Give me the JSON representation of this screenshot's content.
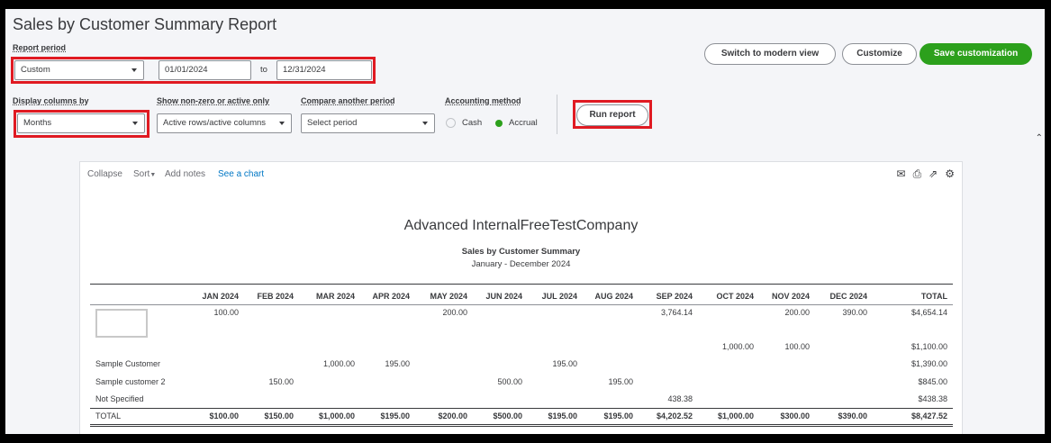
{
  "header": {
    "title": "Sales by Customer Summary Report"
  },
  "controls": {
    "report_period_label": "Report period",
    "report_period_value": "Custom",
    "date_from": "01/01/2024",
    "date_to_label": "to",
    "date_to": "12/31/2024",
    "display_columns_label": "Display columns by",
    "display_columns_value": "Months",
    "show_nonzero_label": "Show non-zero or active only",
    "show_nonzero_value": "Active rows/active columns",
    "compare_label": "Compare another period",
    "compare_value": "Select period",
    "accounting_label": "Accounting method",
    "cash_label": "Cash",
    "accrual_label": "Accrual",
    "accounting_selected": "Accrual",
    "run_report_label": "Run report"
  },
  "buttons": {
    "switch_view": "Switch to modern view",
    "customize": "Customize",
    "save_customization": "Save customization"
  },
  "toolbar": {
    "collapse": "Collapse",
    "sort": "Sort",
    "add_notes": "Add notes",
    "see_chart": "See a chart"
  },
  "report": {
    "company": "Advanced InternalFreeTestCompany",
    "title": "Sales by Customer Summary",
    "date_range": "January - December 2024",
    "columns": [
      "JAN 2024",
      "FEB 2024",
      "MAR 2024",
      "APR 2024",
      "MAY 2024",
      "JUN 2024",
      "JUL 2024",
      "AUG 2024",
      "SEP 2024",
      "OCT 2024",
      "NOV 2024",
      "DEC 2024",
      "TOTAL"
    ],
    "rows": [
      {
        "name": "",
        "cells": [
          "100.00",
          "",
          "",
          "",
          "200.00",
          "",
          "",
          "",
          "3,764.14",
          "",
          "200.00",
          "390.00",
          "$4,654.14"
        ]
      },
      {
        "name": "",
        "cells": [
          "",
          "",
          "",
          "",
          "",
          "",
          "",
          "",
          "",
          "1,000.00",
          "100.00",
          "",
          "$1,100.00"
        ]
      },
      {
        "name": "Sample Customer",
        "cells": [
          "",
          "",
          "1,000.00",
          "195.00",
          "",
          "",
          "195.00",
          "",
          "",
          "",
          "",
          "",
          "$1,390.00"
        ]
      },
      {
        "name": "Sample customer 2",
        "cells": [
          "",
          "150.00",
          "",
          "",
          "",
          "500.00",
          "",
          "195.00",
          "",
          "",
          "",
          "",
          "$845.00"
        ]
      },
      {
        "name": "Not Specified",
        "cells": [
          "",
          "",
          "",
          "",
          "",
          "",
          "",
          "",
          "438.38",
          "",
          "",
          "",
          "$438.38"
        ]
      }
    ],
    "total": {
      "name": "TOTAL",
      "cells": [
        "$100.00",
        "$150.00",
        "$1,000.00",
        "$195.00",
        "$200.00",
        "$500.00",
        "$195.00",
        "$195.00",
        "$4,202.52",
        "$1,000.00",
        "$300.00",
        "$390.00",
        "$8,427.52"
      ]
    }
  },
  "colors": {
    "highlight": "#e01a22",
    "brand_green": "#2ca01c",
    "link_blue": "#0077c5"
  }
}
